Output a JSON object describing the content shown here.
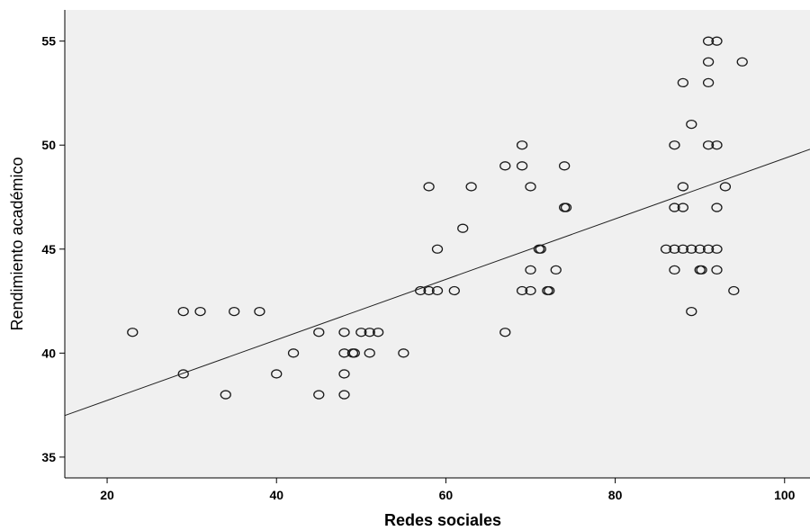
{
  "chart_data": {
    "type": "scatter",
    "title": "",
    "xlabel": "Redes sociales",
    "ylabel": "Rendimiento académico",
    "xlim": [
      15,
      103
    ],
    "ylim": [
      34,
      56.5
    ],
    "x_ticks": [
      20,
      40,
      60,
      80,
      100
    ],
    "y_ticks": [
      35,
      40,
      45,
      50,
      55
    ],
    "grid": false,
    "legend": "none",
    "colors": {
      "plot_background": "#f0f0f0",
      "marker_stroke": "#1a1a1a",
      "fit_line": "#222222",
      "axis": "#000000"
    },
    "fit_line": {
      "type": "linear",
      "x": [
        15,
        103
      ],
      "y": [
        37.0,
        49.8
      ]
    },
    "points": [
      {
        "x": 23,
        "y": 41
      },
      {
        "x": 29,
        "y": 42
      },
      {
        "x": 29,
        "y": 39
      },
      {
        "x": 31,
        "y": 42
      },
      {
        "x": 34,
        "y": 38
      },
      {
        "x": 35,
        "y": 42
      },
      {
        "x": 38,
        "y": 42
      },
      {
        "x": 40,
        "y": 39
      },
      {
        "x": 42,
        "y": 40
      },
      {
        "x": 45,
        "y": 41
      },
      {
        "x": 45,
        "y": 38
      },
      {
        "x": 48,
        "y": 41
      },
      {
        "x": 48,
        "y": 40
      },
      {
        "x": 48,
        "y": 39
      },
      {
        "x": 48,
        "y": 38
      },
      {
        "x": 49,
        "y": 40
      },
      {
        "x": 49.2,
        "y": 40
      },
      {
        "x": 50,
        "y": 41
      },
      {
        "x": 51,
        "y": 41
      },
      {
        "x": 51,
        "y": 40
      },
      {
        "x": 52,
        "y": 41
      },
      {
        "x": 55,
        "y": 40
      },
      {
        "x": 57,
        "y": 43
      },
      {
        "x": 58,
        "y": 48
      },
      {
        "x": 58,
        "y": 43
      },
      {
        "x": 59,
        "y": 45
      },
      {
        "x": 59,
        "y": 43
      },
      {
        "x": 61,
        "y": 43
      },
      {
        "x": 62,
        "y": 46
      },
      {
        "x": 63,
        "y": 48
      },
      {
        "x": 67,
        "y": 49
      },
      {
        "x": 67,
        "y": 41
      },
      {
        "x": 69,
        "y": 50
      },
      {
        "x": 69,
        "y": 49
      },
      {
        "x": 69,
        "y": 43
      },
      {
        "x": 70,
        "y": 48
      },
      {
        "x": 70,
        "y": 44
      },
      {
        "x": 70,
        "y": 43
      },
      {
        "x": 71,
        "y": 45
      },
      {
        "x": 71.2,
        "y": 45
      },
      {
        "x": 72,
        "y": 43
      },
      {
        "x": 72.2,
        "y": 43
      },
      {
        "x": 73,
        "y": 44
      },
      {
        "x": 74,
        "y": 49
      },
      {
        "x": 74,
        "y": 47
      },
      {
        "x": 74.2,
        "y": 47
      },
      {
        "x": 86,
        "y": 45
      },
      {
        "x": 87,
        "y": 50
      },
      {
        "x": 87,
        "y": 47
      },
      {
        "x": 87,
        "y": 45
      },
      {
        "x": 87,
        "y": 44
      },
      {
        "x": 88,
        "y": 53
      },
      {
        "x": 88,
        "y": 48
      },
      {
        "x": 88,
        "y": 47
      },
      {
        "x": 88,
        "y": 45
      },
      {
        "x": 89,
        "y": 51
      },
      {
        "x": 89,
        "y": 45
      },
      {
        "x": 89,
        "y": 42
      },
      {
        "x": 90,
        "y": 45
      },
      {
        "x": 90,
        "y": 44
      },
      {
        "x": 90.2,
        "y": 44
      },
      {
        "x": 91,
        "y": 55
      },
      {
        "x": 91,
        "y": 54
      },
      {
        "x": 91,
        "y": 53
      },
      {
        "x": 91,
        "y": 50
      },
      {
        "x": 91,
        "y": 45
      },
      {
        "x": 92,
        "y": 55
      },
      {
        "x": 92,
        "y": 50
      },
      {
        "x": 92,
        "y": 47
      },
      {
        "x": 92,
        "y": 45
      },
      {
        "x": 92,
        "y": 44
      },
      {
        "x": 93,
        "y": 48
      },
      {
        "x": 94,
        "y": 43
      },
      {
        "x": 95,
        "y": 54
      }
    ]
  }
}
